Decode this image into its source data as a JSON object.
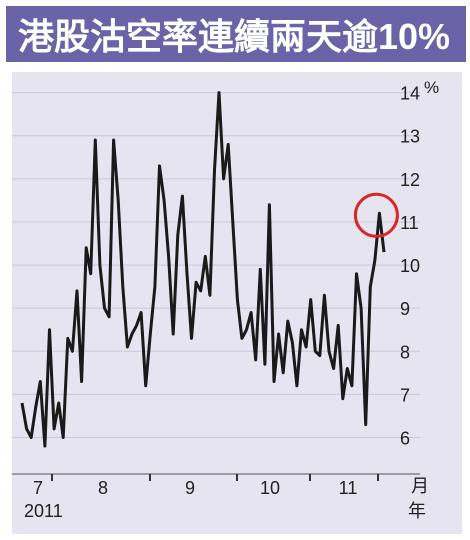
{
  "title": "港股沽空率連續兩天逾10%",
  "colors": {
    "title_bg": "#6b63a8",
    "plot_bg": "#e6e4f0",
    "line": "#1a1a1a",
    "grid": "#c9c6d9",
    "highlight_circle": "#d62828"
  },
  "chart_data": {
    "type": "line",
    "title": "港股沽空率連續兩天逾10%",
    "y_unit": "%",
    "x_unit": "月\n年",
    "ylim": [
      5.2,
      14.2
    ],
    "y_ticks": [
      "6",
      "7",
      "8",
      "9",
      "10",
      "11",
      "12",
      "13",
      "14"
    ],
    "x_month_labels": [
      "7",
      "8",
      "9",
      "10",
      "11"
    ],
    "year_label": "2011",
    "grid": true,
    "highlight": "last two points circled",
    "series": [
      {
        "values": [
          6.8,
          6.2,
          6.0,
          6.7,
          7.3,
          5.8,
          8.5,
          6.2,
          6.8,
          6.0,
          8.3,
          8.0,
          9.4,
          7.3,
          10.4,
          9.8,
          12.9,
          10.0,
          9.0,
          8.8,
          12.9,
          11.5,
          9.5,
          8.1,
          8.4,
          8.6,
          8.9,
          7.2,
          8.4,
          9.5,
          12.3,
          11.5,
          10.2,
          8.4,
          10.7,
          11.6,
          9.8,
          8.3,
          9.6,
          9.4,
          10.2,
          9.3,
          12.2,
          14.0,
          12.0,
          12.8,
          11.0,
          9.2,
          8.3,
          8.5,
          8.9,
          7.8,
          9.9,
          7.7,
          11.4,
          7.3,
          8.4,
          7.5,
          8.7,
          8.2,
          7.2,
          8.5,
          8.1,
          9.2,
          8.0,
          7.9,
          9.3,
          8.0,
          7.6,
          8.6,
          6.9,
          7.6,
          7.2,
          9.8,
          9.0,
          6.3,
          9.5,
          10.1,
          11.2,
          10.3
        ],
        "x_start": 0,
        "x_end": 1
      }
    ]
  }
}
